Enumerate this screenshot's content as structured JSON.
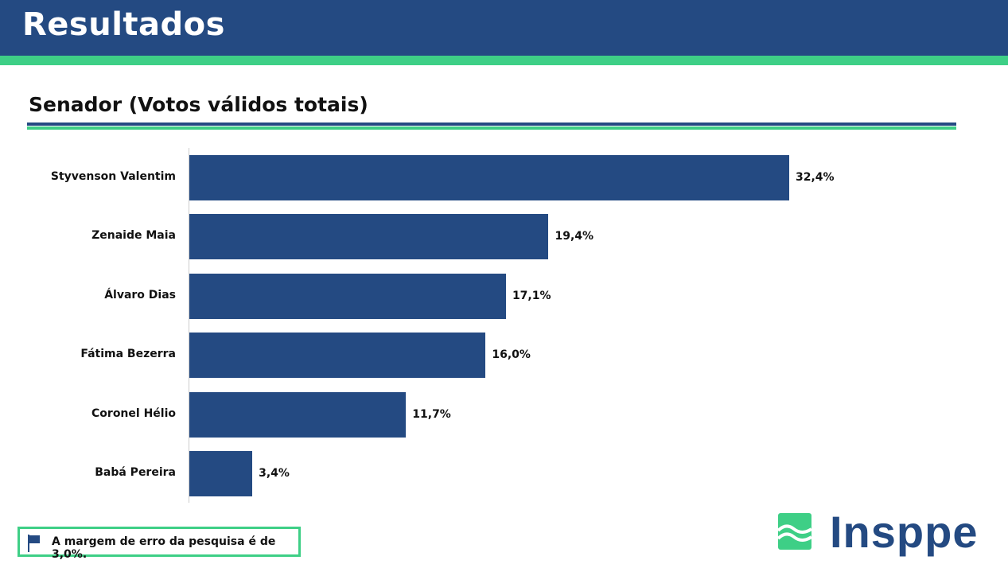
{
  "header": {
    "title": "Resultados"
  },
  "chart_data": {
    "type": "bar",
    "orientation": "horizontal",
    "title": "Senador (Votos válidos totais)",
    "categories": [
      "Styvenson Valentim",
      "Zenaide Maia",
      "Álvaro Dias",
      "Fátima Bezerra",
      "Coronel Hélio",
      "Babá Pereira"
    ],
    "values": [
      32.4,
      19.4,
      17.1,
      16.0,
      11.7,
      3.4
    ],
    "value_labels": [
      "32,4%",
      "19,4%",
      "17,1%",
      "16,0%",
      "11,7%",
      "3,4%"
    ],
    "bar_color": "#244a82",
    "xlim": [
      0,
      35
    ],
    "grid": false
  },
  "footer": {
    "note": "A margem de erro da pesquisa é de 3,0%.",
    "logo": "Insppe"
  },
  "colors": {
    "primary": "#244a82",
    "accent": "#3ecf86"
  }
}
